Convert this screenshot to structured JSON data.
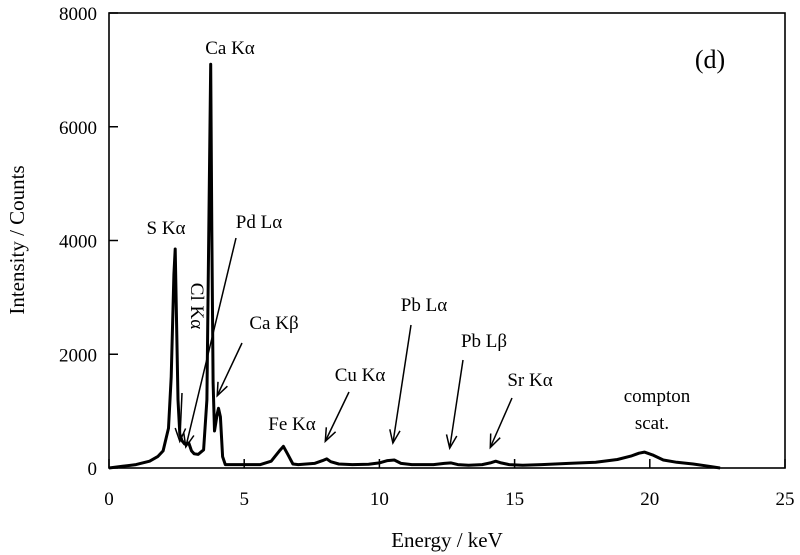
{
  "chart_data": {
    "type": "line",
    "panel_label": "(d)",
    "xlabel": "Energy / keV",
    "ylabel": "Intensity / Counts",
    "xlim": [
      0,
      25
    ],
    "ylim": [
      0,
      8000
    ],
    "xticks": [
      0,
      5,
      10,
      15,
      20,
      25
    ],
    "yticks": [
      0,
      2000,
      4000,
      6000,
      8000
    ],
    "grid": false,
    "legend": "none",
    "series": [
      {
        "x": [
          0,
          0.5,
          1.0,
          1.5,
          1.8,
          2.0,
          2.2,
          2.3,
          2.4,
          2.45,
          2.55,
          2.62,
          2.7,
          2.8,
          2.95,
          3.05,
          3.15,
          3.3,
          3.5,
          3.62,
          3.7,
          3.76,
          3.8,
          3.85,
          3.9,
          4.0,
          4.05,
          4.12,
          4.2,
          4.3,
          4.5,
          5.0,
          5.6,
          6.0,
          6.3,
          6.45,
          6.6,
          6.8,
          7.0,
          7.3,
          7.6,
          7.9,
          8.05,
          8.2,
          8.5,
          9.0,
          9.6,
          10.0,
          10.3,
          10.55,
          10.8,
          11.2,
          11.6,
          12.0,
          12.4,
          12.65,
          12.9,
          13.3,
          13.8,
          14.1,
          14.3,
          14.5,
          14.8,
          15.3,
          16.0,
          17.0,
          18.0,
          18.8,
          19.3,
          19.6,
          19.8,
          20.1,
          20.5,
          21.0,
          21.6,
          22.2,
          22.6
        ],
        "y": [
          0,
          30,
          60,
          120,
          200,
          300,
          700,
          1600,
          3400,
          3850,
          1200,
          600,
          480,
          420,
          440,
          300,
          250,
          240,
          320,
          1200,
          4500,
          7100,
          4200,
          1500,
          650,
          950,
          1050,
          900,
          200,
          60,
          60,
          60,
          60,
          120,
          300,
          380,
          250,
          70,
          60,
          70,
          80,
          130,
          160,
          110,
          70,
          60,
          65,
          90,
          130,
          140,
          80,
          60,
          60,
          60,
          80,
          90,
          60,
          50,
          60,
          90,
          120,
          90,
          60,
          50,
          60,
          80,
          100,
          150,
          210,
          260,
          280,
          230,
          140,
          100,
          70,
          30,
          0
        ]
      }
    ],
    "annotations": [
      {
        "text": "Ca Kα",
        "x": 3.7,
        "y": 7100
      },
      {
        "text": "S Kα",
        "x": 2.31,
        "y": 3850
      },
      {
        "text": "Pd Lα",
        "x": 2.84,
        "y": 300
      },
      {
        "text": "Cl Kα",
        "x": 2.62,
        "y": 400
      },
      {
        "text": "Ca Kβ",
        "x": 4.0,
        "y": 1200
      },
      {
        "text": "Fe Kα",
        "x": 6.4,
        "y": 380
      },
      {
        "text": "Cu Kα",
        "x": 8.0,
        "y": 400
      },
      {
        "text": "Pb Lα",
        "x": 10.5,
        "y": 370
      },
      {
        "text": "Pb Lβ",
        "x": 12.6,
        "y": 280
      },
      {
        "text": "Sr Kα",
        "x": 14.1,
        "y": 290
      },
      {
        "text": "compton",
        "x": 19.7,
        "y": 1250
      },
      {
        "text": "scat.",
        "x": 19.7,
        "y": 770
      }
    ]
  }
}
